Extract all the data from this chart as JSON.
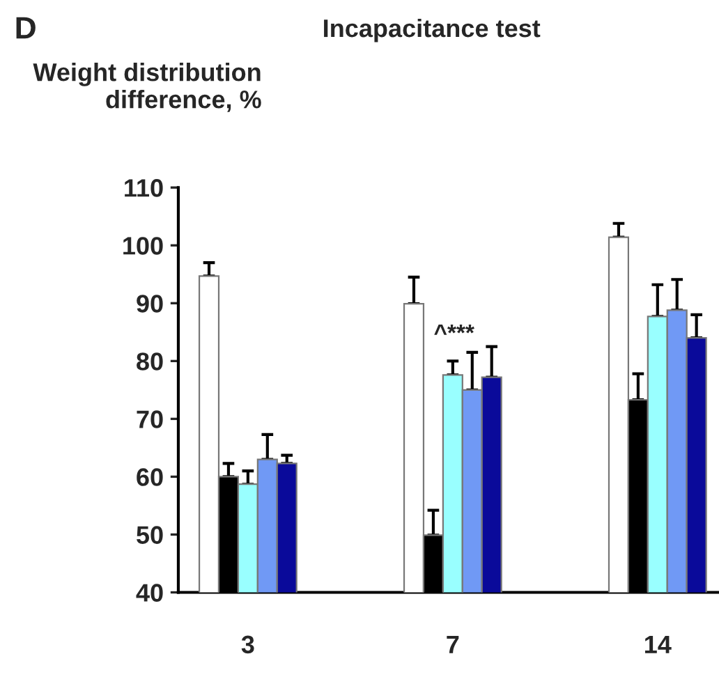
{
  "chart_data": {
    "type": "bar",
    "title": "Incapacitance test",
    "ylabel": "Weight distribution\ndifference, %",
    "annotations": [
      "D",
      "^***"
    ],
    "categories": [
      "3",
      "7",
      "14"
    ],
    "series": [
      {
        "color": "#ffffff",
        "values": [
          94.7,
          89.9,
          101.4
        ],
        "errors": [
          [
            94.7,
            97
          ],
          [
            89.9,
            94.5
          ],
          [
            101.4,
            103.8
          ]
        ]
      },
      {
        "color": "#000000",
        "values": [
          60,
          49.9,
          73.3
        ],
        "errors": [
          [
            60,
            62.3
          ],
          [
            49.9,
            54.2
          ],
          [
            73.3,
            77.8
          ]
        ]
      },
      {
        "color": "#99ffff",
        "values": [
          58.7,
          77.6,
          87.7
        ],
        "errors": [
          [
            58.7,
            61
          ],
          [
            77.6,
            80
          ],
          [
            87.7,
            93.2
          ]
        ]
      },
      {
        "color": "#7099f5",
        "values": [
          63,
          75,
          88.8
        ],
        "errors": [
          [
            63,
            67.3
          ],
          [
            75,
            81.5
          ],
          [
            88.8,
            94.1
          ]
        ]
      },
      {
        "color": "#0a0a9a",
        "values": [
          62.3,
          77.2,
          84
        ],
        "errors": [
          [
            62.3,
            63.7
          ],
          [
            77.2,
            82.5
          ],
          [
            84,
            88
          ]
        ]
      }
    ],
    "ylim": [
      40,
      110
    ],
    "yticks": [
      40,
      50,
      60,
      70,
      80,
      90,
      100,
      110
    ],
    "grid": false,
    "legend": false
  }
}
